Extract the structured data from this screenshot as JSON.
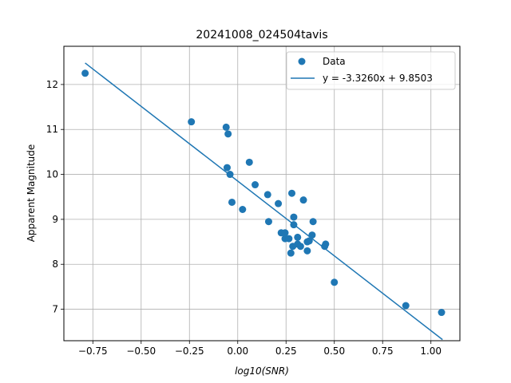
{
  "chart_data": {
    "type": "scatter",
    "title": "20241008_024504tavis",
    "xlabel": "log10(SNR)",
    "ylabel": "Apparent Magnitude",
    "xlim": [
      -0.9,
      1.15
    ],
    "ylim": [
      6.3,
      12.85
    ],
    "grid": true,
    "legend_position": "top-right",
    "xticks": [
      -0.75,
      -0.5,
      -0.25,
      0.0,
      0.25,
      0.5,
      0.75,
      1.0
    ],
    "xtick_labels": [
      "−0.75",
      "−0.50",
      "−0.25",
      "0.00",
      "0.25",
      "0.50",
      "0.75",
      "1.00"
    ],
    "yticks": [
      7,
      8,
      9,
      10,
      11,
      12
    ],
    "ytick_labels": [
      "7",
      "8",
      "9",
      "10",
      "11",
      "12"
    ],
    "color": "#1f77b4",
    "series": [
      {
        "name": "Data",
        "kind": "scatter",
        "points": [
          [
            -0.79,
            12.25
          ],
          [
            -0.24,
            11.17
          ],
          [
            -0.06,
            11.05
          ],
          [
            -0.05,
            10.9
          ],
          [
            -0.055,
            10.15
          ],
          [
            -0.04,
            10.0
          ],
          [
            0.06,
            10.27
          ],
          [
            0.09,
            9.77
          ],
          [
            0.155,
            9.55
          ],
          [
            0.21,
            9.35
          ],
          [
            0.28,
            9.58
          ],
          [
            0.34,
            9.43
          ],
          [
            -0.03,
            9.38
          ],
          [
            0.025,
            9.22
          ],
          [
            0.16,
            8.95
          ],
          [
            0.29,
            9.05
          ],
          [
            0.29,
            8.88
          ],
          [
            0.39,
            8.95
          ],
          [
            0.225,
            8.7
          ],
          [
            0.245,
            8.7
          ],
          [
            0.245,
            8.57
          ],
          [
            0.265,
            8.57
          ],
          [
            0.31,
            8.6
          ],
          [
            0.385,
            8.65
          ],
          [
            0.37,
            8.52
          ],
          [
            0.36,
            8.5
          ],
          [
            0.31,
            8.45
          ],
          [
            0.285,
            8.4
          ],
          [
            0.325,
            8.4
          ],
          [
            0.455,
            8.45
          ],
          [
            0.45,
            8.4
          ],
          [
            0.36,
            8.3
          ],
          [
            0.275,
            8.25
          ],
          [
            0.5,
            7.6
          ],
          [
            0.87,
            7.08
          ],
          [
            1.055,
            6.93
          ]
        ]
      },
      {
        "name": "y = -3.3260x + 9.8503",
        "kind": "line",
        "slope": -3.326,
        "intercept": 9.8503,
        "x_range": [
          -0.79,
          1.06
        ]
      }
    ]
  }
}
